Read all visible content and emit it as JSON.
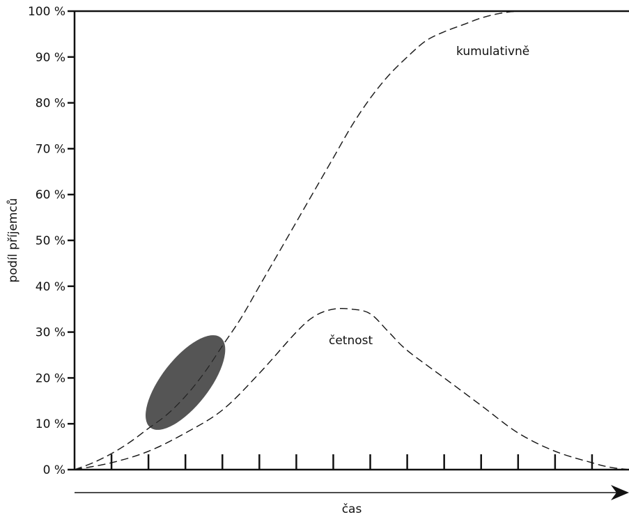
{
  "chart_data": {
    "type": "line",
    "xlabel": "čas",
    "ylabel": "podíl příjemců",
    "ylim": [
      0,
      100
    ],
    "yticks": [
      "0 %",
      "10 %",
      "20 %",
      "30 %",
      "40 %",
      "50 %",
      "60 %",
      "70 %",
      "80 %",
      "90 %",
      "100 %"
    ],
    "x_tick_count": 15,
    "grid": false,
    "series": [
      {
        "name": "kumulativně",
        "style": "dashed",
        "color": "#111111",
        "x": [
          0,
          0.5,
          1,
          1.5,
          2,
          2.5,
          3,
          3.5,
          4,
          4.5,
          5,
          5.5,
          6,
          6.5,
          7,
          7.5,
          8,
          8.5,
          9,
          9.5,
          10,
          10.5,
          11,
          11.5,
          12,
          12.5,
          13,
          13.5,
          14,
          14.5,
          15
        ],
        "values": [
          0,
          1.5,
          3.5,
          6,
          9,
          12,
          16,
          21,
          27,
          33,
          40,
          47,
          54,
          61,
          68,
          75,
          81,
          86,
          90,
          93.5,
          95.5,
          97,
          98.5,
          99.5,
          100,
          100,
          100,
          100,
          100,
          100,
          100
        ]
      },
      {
        "name": "četnost",
        "style": "dashed",
        "color": "#111111",
        "x": [
          0,
          1,
          2,
          3,
          4,
          5,
          6,
          6.5,
          7,
          7.5,
          8,
          8.5,
          9,
          10,
          11,
          12,
          13,
          14,
          14.5,
          15
        ],
        "values": [
          0,
          1.5,
          4,
          8,
          13,
          21,
          30,
          33.5,
          35,
          35,
          34,
          30,
          26,
          20,
          14,
          8,
          4,
          1.5,
          0.5,
          0
        ]
      }
    ],
    "highlight_ellipse": {
      "color": "#555555",
      "center": [
        3,
        19
      ],
      "note_visible": false
    }
  }
}
